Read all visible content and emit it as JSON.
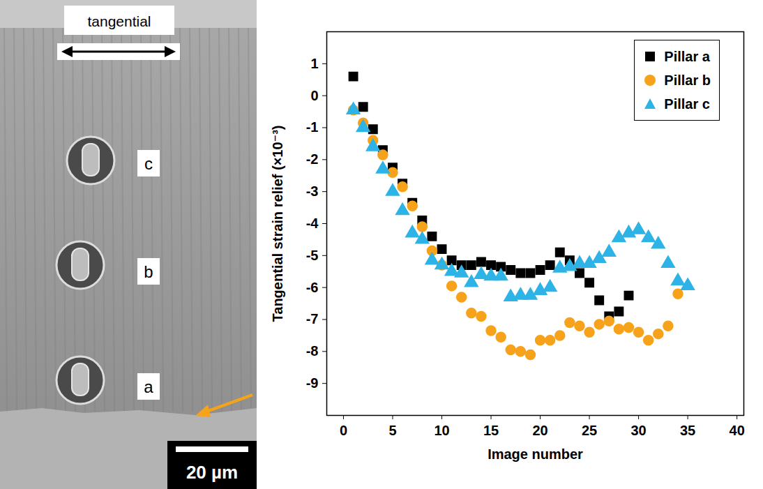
{
  "micrograph": {
    "direction_label": "tangential",
    "pillar_labels": [
      "c",
      "b",
      "a"
    ],
    "scale_bar": "20 µm"
  },
  "chart_data": {
    "type": "scatter",
    "x_label": "Image number",
    "y_label": "Tangential strain relief (×10⁻³)",
    "xlim": [
      -1.7,
      40.7
    ],
    "xticks": [
      0,
      5,
      10,
      15,
      20,
      25,
      30,
      35,
      40
    ],
    "ylim": [
      -10,
      2
    ],
    "yticks": [
      -9,
      -8,
      -7,
      -6,
      -5,
      -4,
      -3,
      -2,
      -1,
      0,
      1
    ],
    "legend": "upper right",
    "series": [
      {
        "name": "Pillar a",
        "color": "#000000",
        "marker": "square",
        "x": [
          1,
          2,
          3,
          4,
          5,
          6,
          7,
          8,
          9,
          10,
          11,
          12,
          13,
          14,
          15,
          16,
          17,
          18,
          19,
          20,
          21,
          22,
          23,
          24,
          25,
          26,
          27,
          28,
          29
        ],
        "values": [
          0.6,
          -0.35,
          -1.05,
          -1.7,
          -2.25,
          -2.75,
          -3.35,
          -3.9,
          -4.4,
          -4.8,
          -5.15,
          -5.3,
          -5.3,
          -5.2,
          -5.3,
          -5.35,
          -5.45,
          -5.55,
          -5.55,
          -5.45,
          -5.3,
          -4.9,
          -5.15,
          -5.55,
          -5.85,
          -6.4,
          -6.9,
          -6.75,
          -6.25
        ]
      },
      {
        "name": "Pillar b",
        "color": "#f7a21b",
        "marker": "circle",
        "x": [
          1,
          2,
          3,
          4,
          5,
          6,
          7,
          8,
          9,
          10,
          11,
          12,
          13,
          14,
          15,
          16,
          17,
          18,
          19,
          20,
          21,
          22,
          23,
          24,
          25,
          26,
          27,
          28,
          29,
          30,
          31,
          32,
          33,
          34
        ],
        "values": [
          -0.45,
          -0.85,
          -1.4,
          -1.85,
          -2.4,
          -2.85,
          -3.45,
          -4.1,
          -4.85,
          -5.3,
          -5.95,
          -6.3,
          -6.8,
          -6.9,
          -7.35,
          -7.55,
          -7.95,
          -8.0,
          -8.1,
          -7.65,
          -7.65,
          -7.5,
          -7.1,
          -7.2,
          -7.4,
          -7.15,
          -7.05,
          -7.3,
          -7.25,
          -7.4,
          -7.65,
          -7.45,
          -7.2,
          -6.2
        ]
      },
      {
        "name": "Pillar c",
        "color": "#2eb3e6",
        "marker": "triangle",
        "x": [
          1,
          2,
          3,
          4,
          5,
          6,
          7,
          8,
          9,
          10,
          11,
          12,
          13,
          14,
          15,
          16,
          17,
          18,
          19,
          20,
          21,
          22,
          23,
          24,
          25,
          26,
          27,
          28,
          29,
          30,
          31,
          32,
          33,
          34,
          35
        ],
        "values": [
          -0.45,
          -1.0,
          -1.6,
          -2.3,
          -3.0,
          -3.6,
          -4.3,
          -4.5,
          -5.15,
          -5.3,
          -5.5,
          -5.55,
          -5.85,
          -5.6,
          -5.65,
          -5.65,
          -6.3,
          -6.25,
          -6.25,
          -6.1,
          -6.0,
          -5.4,
          -5.35,
          -5.25,
          -5.25,
          -5.1,
          -4.9,
          -4.45,
          -4.3,
          -4.2,
          -4.45,
          -4.65,
          -5.25,
          -5.8,
          -5.95
        ]
      }
    ]
  }
}
